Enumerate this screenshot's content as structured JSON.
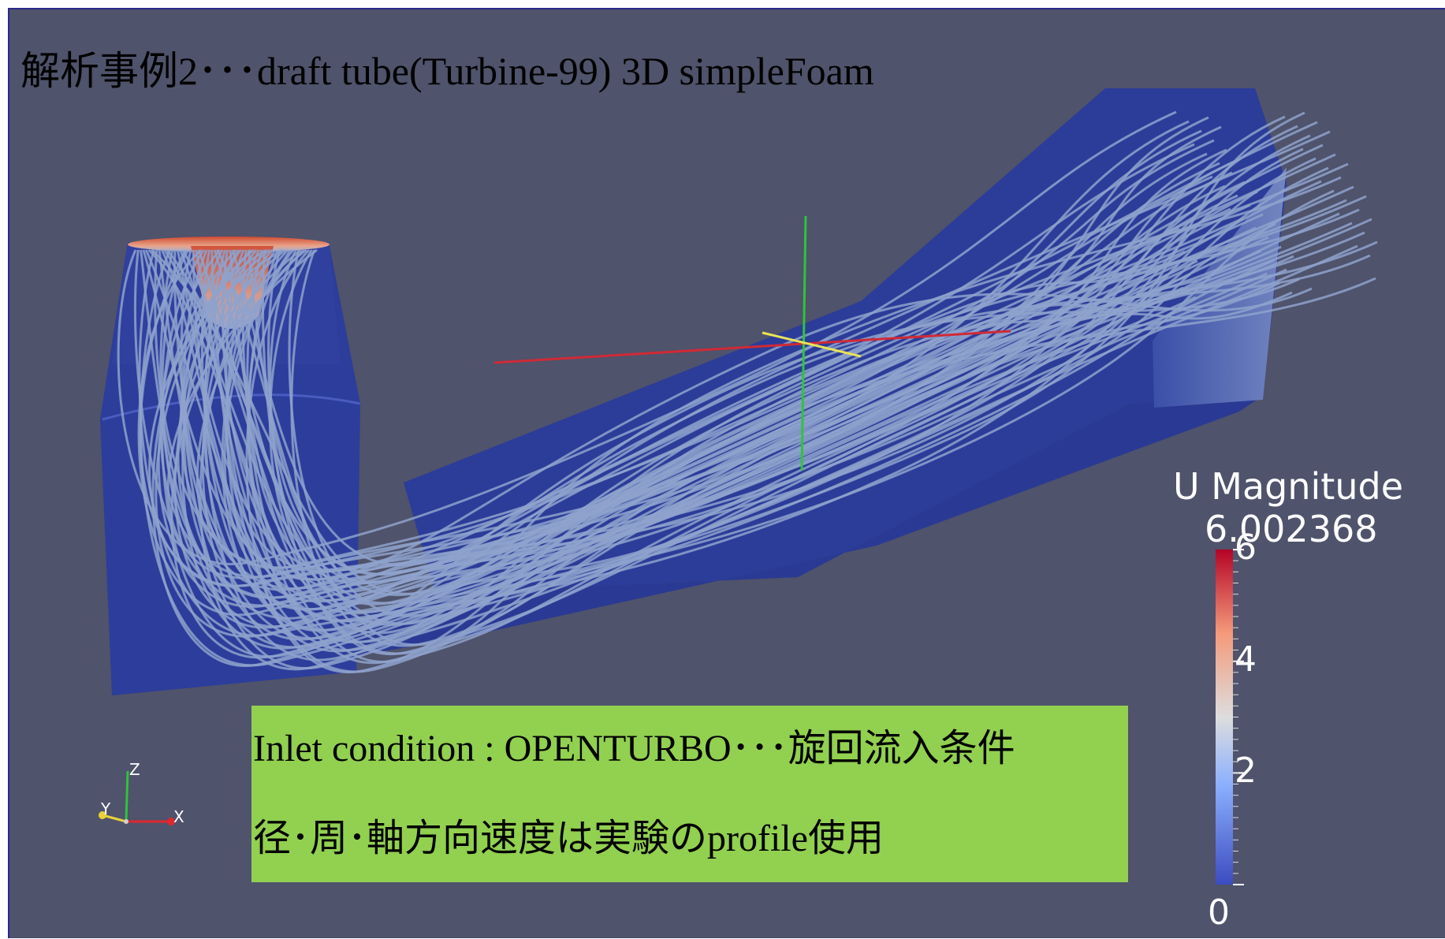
{
  "slide": {
    "title": "解析事例2･･･draft tube(Turbine-99)  3D  simpleFoam",
    "info_line1": "Inlet condition : OPENTURBO･･･旋回流入条件",
    "info_line2": "径･周･軸方向速度は実験のprofile使用",
    "info_bg_color": "#92d050"
  },
  "viewport": {
    "background_color": "#4f536b",
    "geometry_color": "#2b3f9e",
    "streamline_color": "#8ea2cc"
  },
  "legend": {
    "title": "U Magnitude",
    "max_value": "6.002368",
    "ticks": [
      {
        "label": "6",
        "value": 6
      },
      {
        "label": "4",
        "value": 4
      },
      {
        "label": "2",
        "value": 2
      },
      {
        "label": "0",
        "value": 0
      }
    ],
    "range": [
      0,
      6.002368
    ],
    "colormap": [
      "#3b4cc0",
      "#8db0fe",
      "#dddddd",
      "#f49a7b",
      "#b40426"
    ]
  },
  "orientation_axes": {
    "z_label": "Z",
    "y_label": "Y",
    "x_label": "X",
    "x_color": "#e0262e",
    "y_color": "#e8d23a",
    "z_color": "#2ec43c"
  }
}
